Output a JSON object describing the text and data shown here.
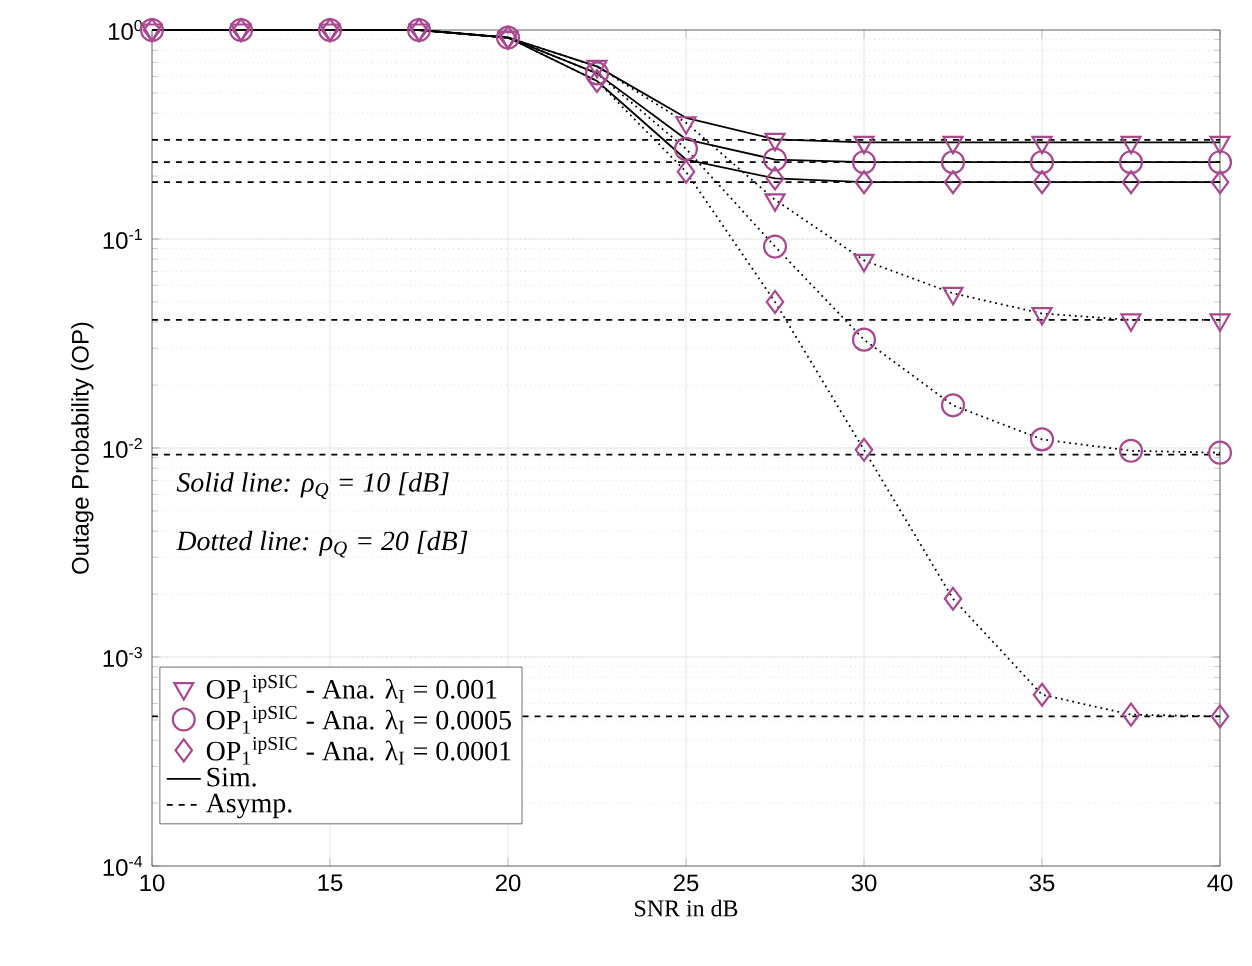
{
  "chart_data": {
    "type": "line",
    "xlabel": "SNR in dB",
    "ylabel": "Outage Probability (OP)",
    "x": [
      10,
      12.5,
      15,
      17.5,
      20,
      22.5,
      25,
      27.5,
      30,
      32.5,
      35,
      37.5,
      40
    ],
    "xlim": [
      10,
      40
    ],
    "xticks": [
      10,
      15,
      20,
      25,
      30,
      35,
      40
    ],
    "ylim": [
      0.0001,
      1
    ],
    "yticks": [
      {
        "value": 0.0001,
        "label": "10$^{-4}$"
      },
      {
        "value": 0.001,
        "label": "10$^{-3}$"
      },
      {
        "value": 0.01,
        "label": "10$^{-2}$"
      },
      {
        "value": 0.1,
        "label": "10$^{-1}$"
      },
      {
        "value": 1,
        "label": "10$^{0}$"
      }
    ],
    "log": "y",
    "grid": true,
    "legend": "bottom left",
    "annotations": [
      "Solid line: ρ$_{Q}$ = 10 [dB]",
      "Dotted line: ρ$_{Q}$ = 20 [dB]"
    ],
    "series": [
      {
        "type": "scatter",
        "name": "OP$_{1}$$^{ipSIC}$ - Ana. λ$_{I}$ = 0.001",
        "color": "#a8488f",
        "marker": "triangle",
        "values": [
          1,
          1,
          1,
          1,
          0.92,
          0.67,
          0.36,
          0.3,
          0.29,
          0.29,
          0.29,
          0.29,
          0.29
        ]
      },
      {
        "type": "scatter",
        "name": "OP$_{1}$$^{ipSIC}$ - Ana. λ$_{I}$ = 0.0005",
        "color": "#a8488f",
        "marker": "circle",
        "values": [
          1,
          1,
          1,
          1,
          0.92,
          0.62,
          0.27,
          0.24,
          0.233,
          0.233,
          0.233,
          0.233,
          0.233
        ]
      },
      {
        "type": "scatter",
        "name": "OP$_{1}$$^{ipSIC}$ - Ana. λ$_{I}$ = 0.0001",
        "color": "#a8488f",
        "marker": "diamond",
        "values": [
          1,
          1,
          1,
          1,
          0.92,
          0.57,
          0.21,
          0.195,
          0.187,
          0.187,
          0.187,
          0.187,
          0.187
        ]
      },
      {
        "name": "Sim.",
        "color": "#000000",
        "line_style": "solid",
        "values": [
          1,
          1,
          1,
          1,
          0.92,
          0.67,
          0.38,
          0.3,
          0.29,
          0.29,
          0.29,
          0.29,
          0.29
        ]
      },
      {
        "name": "Asymp.",
        "color": "#000000",
        "line_style": "dashed",
        "values": [
          0.298,
          0.298,
          0.298,
          0.298,
          0.298,
          0.298,
          0.298,
          0.298,
          0.298,
          0.298,
          0.298,
          0.298,
          0.298
        ]
      },
      {
        "color": "#000000",
        "line_style": "solid",
        "values": [
          1,
          1,
          1,
          1,
          0.92,
          0.62,
          0.3,
          0.24,
          0.233,
          0.233,
          0.233,
          0.233,
          0.233
        ]
      },
      {
        "color": "#000000",
        "line_style": "solid",
        "values": [
          1,
          1,
          1,
          1,
          0.92,
          0.57,
          0.24,
          0.195,
          0.187,
          0.187,
          0.187,
          0.187,
          0.187
        ]
      },
      {
        "type": "scatter",
        "color": "#a8488f",
        "marker": "triangle",
        "values": [
          null,
          null,
          null,
          null,
          null,
          null,
          null,
          0.154,
          0.079,
          0.055,
          0.044,
          0.041,
          0.041
        ]
      },
      {
        "type": "scatter",
        "color": "#a8488f",
        "marker": "circle",
        "values": [
          null,
          null,
          null,
          null,
          null,
          null,
          null,
          0.092,
          0.033,
          0.016,
          0.011,
          0.0097,
          0.0095
        ]
      },
      {
        "type": "scatter",
        "color": "#a8488f",
        "marker": "diamond",
        "values": [
          null,
          null,
          null,
          null,
          null,
          null,
          null,
          0.05,
          0.0098,
          0.0019,
          0.00066,
          0.00053,
          0.00052
        ]
      },
      {
        "color": "#000000",
        "line_style": "dotted",
        "values": [
          1,
          1,
          1,
          1,
          0.92,
          0.67,
          0.36,
          0.154,
          0.079,
          0.055,
          0.044,
          0.041,
          0.041
        ]
      },
      {
        "color": "#000000",
        "line_style": "dotted",
        "values": [
          1,
          1,
          1,
          1,
          0.92,
          0.62,
          0.27,
          0.092,
          0.033,
          0.016,
          0.011,
          0.0097,
          0.0095
        ]
      },
      {
        "color": "#000000",
        "line_style": "dotted",
        "values": [
          1,
          1,
          1,
          1,
          0.92,
          0.57,
          0.21,
          0.05,
          0.0098,
          0.0019,
          0.00066,
          0.00053,
          0.00052
        ]
      },
      {
        "color": "#000000",
        "line_style": "dashed",
        "values": [
          0.233,
          0.233,
          0.233,
          0.233,
          0.233,
          0.233,
          0.233,
          0.233,
          0.233,
          0.233,
          0.233,
          0.233,
          0.233
        ]
      },
      {
        "color": "#000000",
        "line_style": "dashed",
        "values": [
          0.187,
          0.187,
          0.187,
          0.187,
          0.187,
          0.187,
          0.187,
          0.187,
          0.187,
          0.187,
          0.187,
          0.187,
          0.187
        ]
      },
      {
        "color": "#000000",
        "line_style": "dashed",
        "values": [
          0.041,
          0.041,
          0.041,
          0.041,
          0.041,
          0.041,
          0.041,
          0.041,
          0.041,
          0.041,
          0.041,
          0.041,
          0.041
        ]
      },
      {
        "color": "#000000",
        "line_style": "dashed",
        "values": [
          0.0093,
          0.0093,
          0.0093,
          0.0093,
          0.0093,
          0.0093,
          0.0093,
          0.0093,
          0.0093,
          0.0093,
          0.0093,
          0.0093,
          0.0093
        ]
      },
      {
        "color": "#000000",
        "line_style": "dashed",
        "values": [
          0.00052,
          0.00052,
          0.00052,
          0.00052,
          0.00052,
          0.00052,
          0.00052,
          0.00052,
          0.00052,
          0.00052,
          0.00052,
          0.00052,
          0.00052
        ]
      }
    ]
  }
}
